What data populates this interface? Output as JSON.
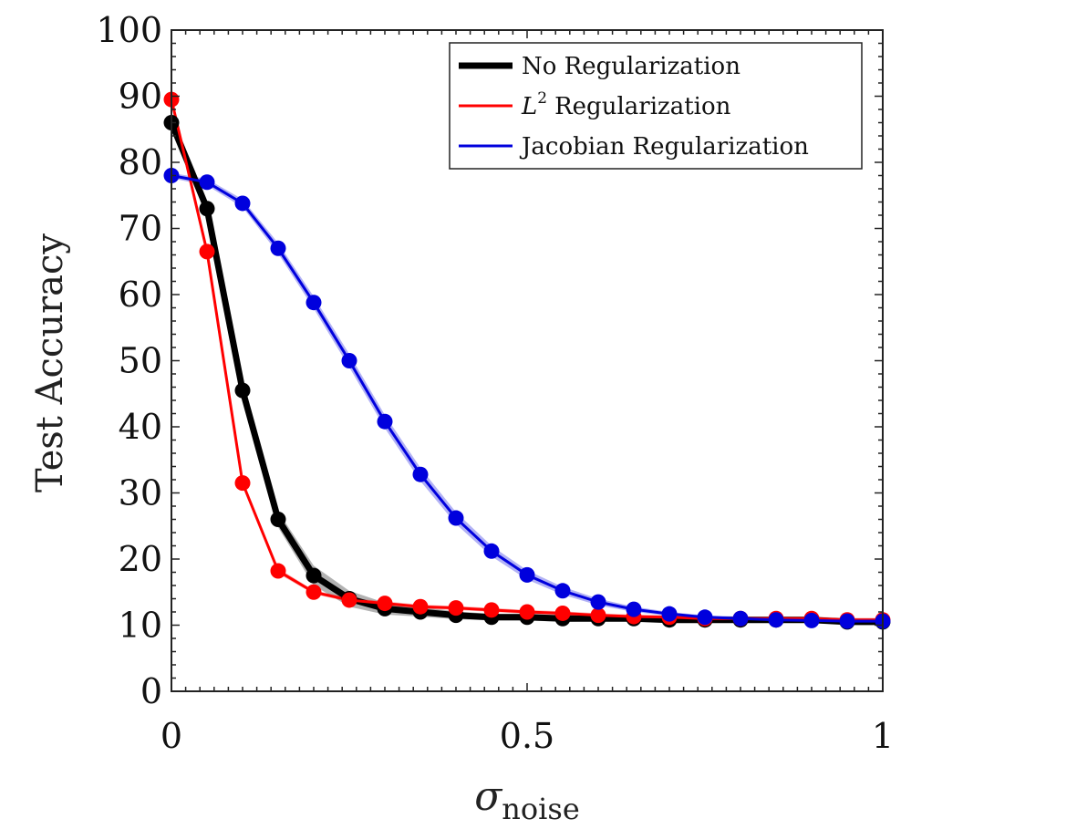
{
  "chart_data": {
    "type": "line",
    "xlabel": "σ",
    "xlabel_sub": "noise",
    "ylabel": "Test Accuracy",
    "xlim": [
      0,
      1
    ],
    "ylim": [
      0,
      100
    ],
    "xticks": [
      0,
      0.5,
      1
    ],
    "xtick_labels": [
      "0",
      "0.5",
      "1"
    ],
    "yticks": [
      0,
      10,
      20,
      30,
      40,
      50,
      60,
      70,
      80,
      90,
      100
    ],
    "ytick_labels": [
      "0",
      "10",
      "20",
      "30",
      "40",
      "50",
      "60",
      "70",
      "80",
      "90",
      "100"
    ],
    "legend_position": "top-right",
    "x": [
      0,
      0.05,
      0.1,
      0.15,
      0.2,
      0.25,
      0.3,
      0.35,
      0.4,
      0.45,
      0.5,
      0.55,
      0.6,
      0.65,
      0.7,
      0.75,
      0.8,
      0.85,
      0.9,
      0.95,
      1.0
    ],
    "series": [
      {
        "name": "No Regularization",
        "legend_main": "No Regularization",
        "legend_sup": "",
        "legend_rest": "",
        "color": "#000000",
        "values": [
          86,
          73,
          45.5,
          26,
          17.5,
          14,
          12.5,
          12,
          11.5,
          11.2,
          11.2,
          11,
          11,
          11,
          10.8,
          10.8,
          10.8,
          10.8,
          10.8,
          10.5,
          10.5
        ],
        "band": [
          0.5,
          0.5,
          0.8,
          1.2,
          1.5,
          1.2,
          0.9,
          0.7,
          0.6,
          0.5,
          0.5,
          0.5,
          0.4,
          0.4,
          0.4,
          0.4,
          0.4,
          0.4,
          0.4,
          0.4,
          0.4
        ]
      },
      {
        "name": "L2 Regularization",
        "legend_main": "L",
        "legend_sup": "2",
        "legend_rest": "Regularization",
        "color": "#ff0000",
        "values": [
          89.5,
          66.5,
          31.5,
          18.2,
          15,
          13.8,
          13.3,
          12.8,
          12.6,
          12.3,
          12,
          11.8,
          11.5,
          11.3,
          11.2,
          11,
          11,
          11,
          11,
          10.8,
          10.8
        ],
        "band": [
          0.3,
          0.4,
          0.5,
          0.4,
          0.3,
          0.3,
          0.3,
          0.3,
          0.3,
          0.3,
          0.3,
          0.3,
          0.3,
          0.3,
          0.3,
          0.3,
          0.3,
          0.3,
          0.3,
          0.3,
          0.3
        ]
      },
      {
        "name": "Jacobian Regularization",
        "legend_main": "Jacobian Regularization",
        "legend_sup": "",
        "legend_rest": "",
        "color": "#0000dd",
        "values": [
          78,
          77,
          73.8,
          67,
          58.8,
          50,
          40.8,
          32.8,
          26.2,
          21.2,
          17.6,
          15.2,
          13.5,
          12.4,
          11.7,
          11.2,
          11,
          10.8,
          10.7,
          10.6,
          10.6
        ],
        "band": [
          0.4,
          0.5,
          0.6,
          0.8,
          0.9,
          1.0,
          1.0,
          1.0,
          0.9,
          0.8,
          0.7,
          0.6,
          0.5,
          0.4,
          0.3,
          0.3,
          0.3,
          0.3,
          0.3,
          0.3,
          0.3
        ]
      }
    ]
  }
}
